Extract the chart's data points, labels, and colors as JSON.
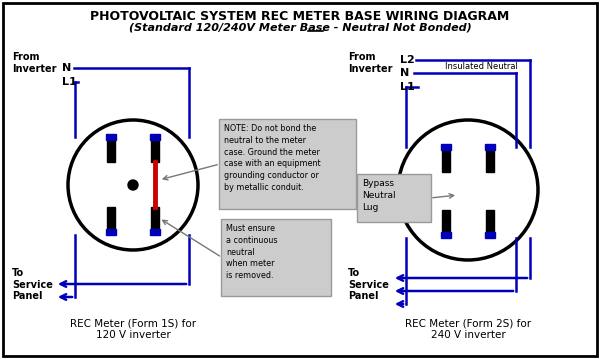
{
  "title_line1": "PHOTOVOLTAIC SYSTEM REC METER BASE WIRING DIAGRAM",
  "title_line2_part1": "(Standard 120/240V Meter Base - Neutral ",
  "title_line2_not": "Not",
  "title_line2_part2": " Bonded)",
  "bg_color": "#ffffff",
  "wire_color": "#0000bb",
  "red_color": "#cc0000",
  "black_color": "#000000",
  "gray_color": "#777777",
  "note_bg": "#cccccc",
  "form1s_label": "REC Meter (Form 1S) for\n120 V inverter",
  "form2s_label": "REC Meter (Form 2S) for\n240 V inverter",
  "note_text": "NOTE: Do not bond the\nneutral to the meter\ncase. Ground the meter\ncase with an equipment\ngrounding conductor or\nby metallic conduit.",
  "must_text": "Must ensure\na continuous\nneutral\nwhen meter\nis removed.",
  "bypass_text": "Bypass\nNeutral\nLug",
  "insulated_text": "Insulated Neutral",
  "from_inverter": "From\nInverter",
  "to_service_panel": "To\nService\nPanel"
}
